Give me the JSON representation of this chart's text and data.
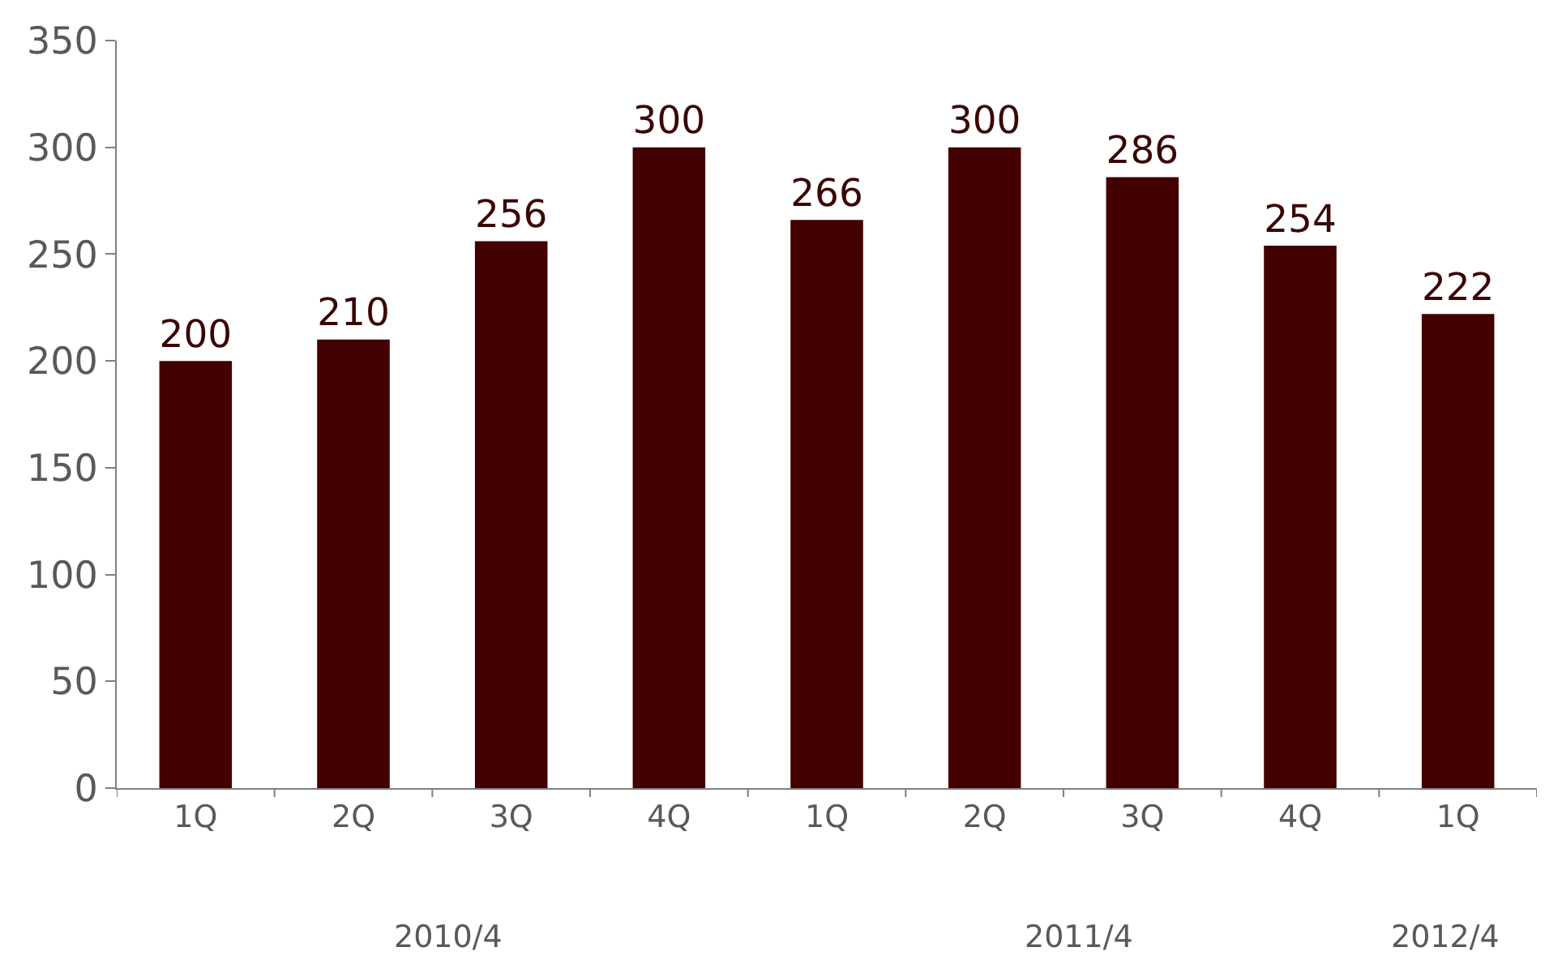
{
  "chart_data": {
    "type": "bar",
    "categories": [
      "1Q",
      "2Q",
      "3Q",
      "4Q",
      "1Q",
      "2Q",
      "3Q",
      "4Q",
      "1Q"
    ],
    "values": [
      200,
      210,
      256,
      300,
      266,
      300,
      286,
      254,
      222
    ],
    "color": "#420000",
    "ylim": [
      0,
      350
    ],
    "yticks": [
      0,
      50,
      100,
      150,
      200,
      250,
      300,
      350
    ],
    "legend": false,
    "data_labels": true,
    "annotations": [
      "2010/4",
      "2011/4",
      "2012/4"
    ]
  }
}
